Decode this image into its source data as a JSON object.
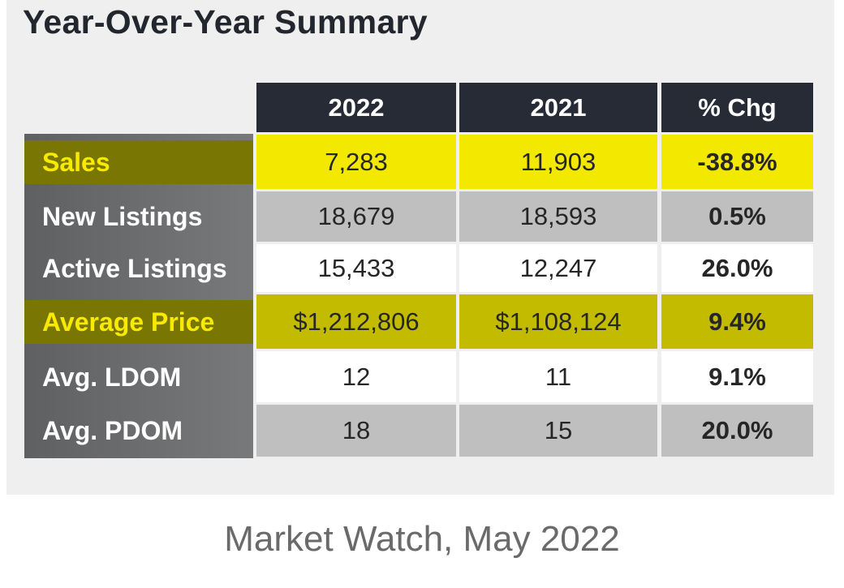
{
  "header": {
    "title": "Year-Over-Year Summary"
  },
  "table": {
    "columns": [
      "2022",
      "2021",
      "% Chg"
    ],
    "rows": [
      [
        "Sales",
        "7,283",
        "11,903",
        "-38.8%"
      ],
      [
        "New Listings",
        "18,679",
        "18,593",
        "0.5%"
      ],
      [
        "Active Listings",
        "15,433",
        "12,247",
        "26.0%"
      ],
      [
        "Average Price",
        "$1,212,806",
        "$1,108,124",
        "9.4%"
      ],
      [
        "Avg. LDOM",
        "12",
        "11",
        "9.1%"
      ],
      [
        "Avg. PDOM",
        "18",
        "15",
        "20.0%"
      ]
    ]
  },
  "footer": {
    "caption": "Market Watch, May 2022"
  }
}
